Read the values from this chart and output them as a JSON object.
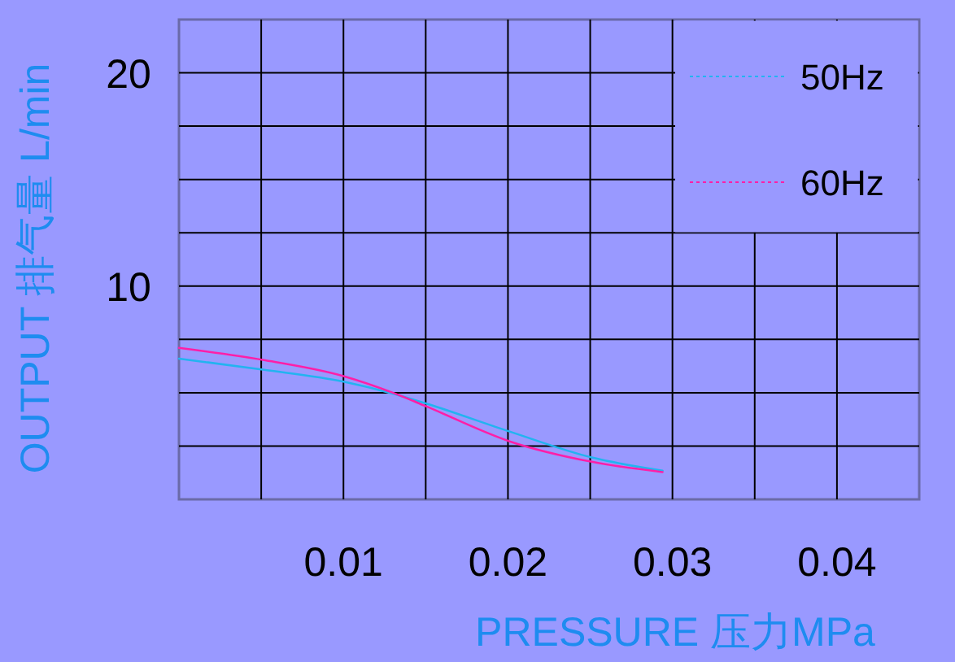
{
  "chart_data": {
    "type": "line",
    "xlabel": "PRESSURE 压力MPa",
    "ylabel": "OUTPUT 排气量 L/min",
    "xlim": [
      0,
      0.045
    ],
    "xticks": [
      {
        "value": 0.005,
        "label": null
      },
      0.01,
      {
        "value": 0.015,
        "label": null
      },
      0.02,
      {
        "value": 0.025,
        "label": null
      },
      0.03,
      {
        "value": 0.035,
        "label": null
      },
      0.04
    ],
    "ylim": [
      0,
      22.5
    ],
    "yticks": [
      {
        "value": 2.5,
        "label": null
      },
      {
        "value": 5,
        "label": null
      },
      {
        "value": 7.5,
        "label": null
      },
      10,
      {
        "value": 12.5,
        "label": null
      },
      {
        "value": 15,
        "label": null
      },
      {
        "value": 17.5,
        "label": null
      },
      20
    ],
    "grid": true,
    "legend": "top right",
    "line_style": "solid",
    "marker": "none",
    "series": [
      {
        "name": "50Hz",
        "color": "#22b4f0",
        "x": [
          0,
          0.0051,
          0.01,
          0.013,
          0.015,
          0.0201,
          0.0251,
          0.0294
        ],
        "values": [
          6.6,
          6.08,
          5.52,
          4.96,
          4.5,
          3.18,
          1.96,
          1.34
        ]
      },
      {
        "name": "60Hz",
        "color": "#ff1fa8",
        "x": [
          0,
          0.0051,
          0.01,
          0.013,
          0.015,
          0.0201,
          0.0251,
          0.0294
        ],
        "values": [
          7.1,
          6.54,
          5.78,
          5.0,
          4.37,
          2.72,
          1.76,
          1.28
        ]
      }
    ]
  }
}
